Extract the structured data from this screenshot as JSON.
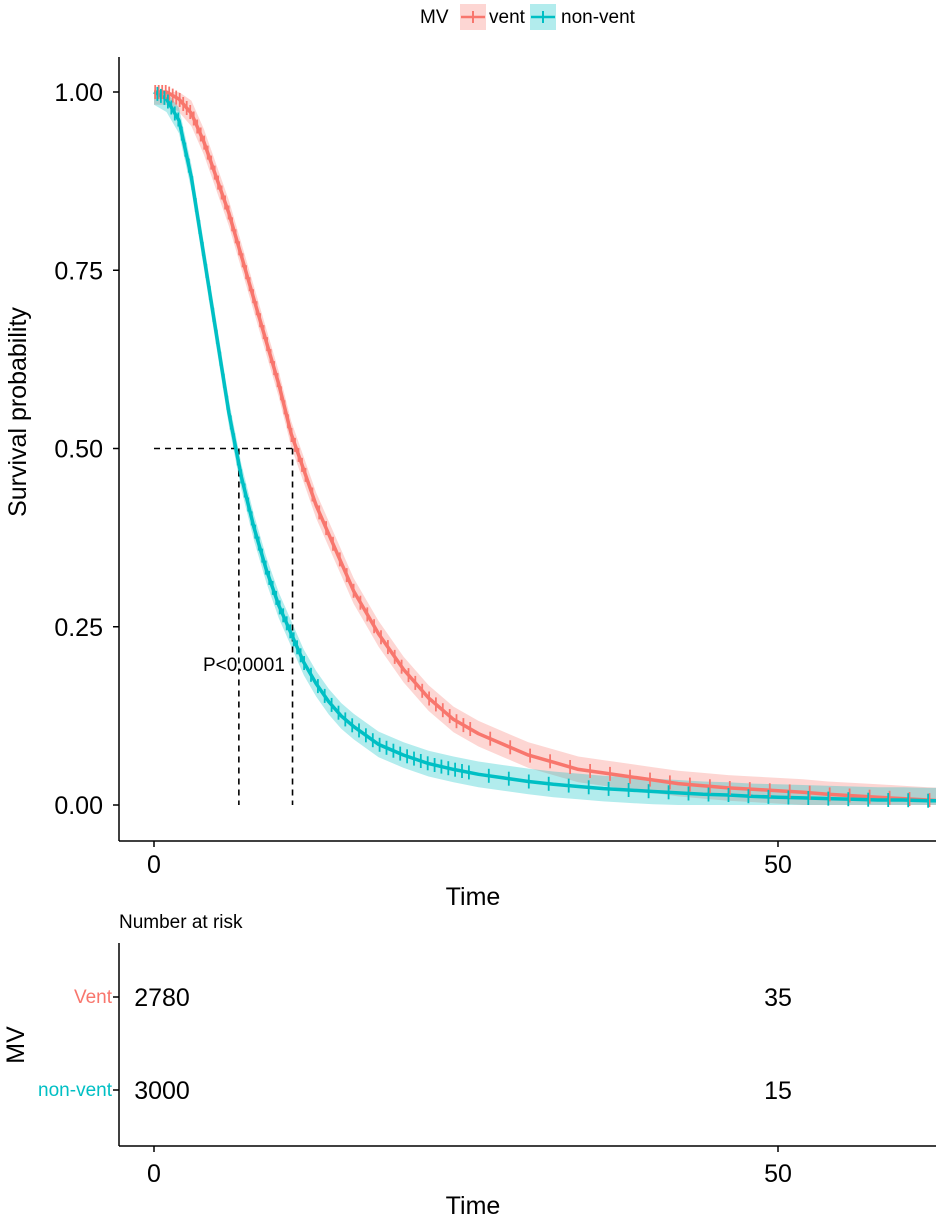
{
  "legend": {
    "title": "MV",
    "items": [
      {
        "label": "vent",
        "color": "#F8766D"
      },
      {
        "label": "non-vent",
        "color": "#00BFC4"
      }
    ],
    "placement": "top"
  },
  "chart_data": [
    {
      "type": "line",
      "subtype": "kaplan-meier survival curve with confidence bands and censor marks",
      "xlabel": "Time",
      "ylabel": "Survival probability",
      "xlim": [
        -5.5,
        63
      ],
      "ylim": [
        -0.05,
        1.05
      ],
      "xticks": [
        0,
        50
      ],
      "yticks": [
        0.0,
        0.25,
        0.5,
        0.75,
        1.0
      ],
      "ytick_labels": [
        "0.00",
        "0.25",
        "0.50",
        "0.75",
        "1.00"
      ],
      "grid": false,
      "annotation": "P<0.0001",
      "median_survival": [
        {
          "series": "non-vent",
          "time": 6.8,
          "probability": 0.5
        },
        {
          "series": "vent",
          "time": 11.1,
          "probability": 0.5
        }
      ],
      "series": [
        {
          "name": "vent",
          "color": "#F8766D",
          "x": [
            0,
            1,
            2,
            3,
            4,
            5,
            6,
            7,
            8,
            9,
            10,
            11,
            12,
            13,
            14,
            15,
            16,
            17,
            18,
            20,
            22,
            24,
            26,
            28,
            30,
            32,
            34,
            36,
            38,
            40,
            42,
            44,
            46,
            48,
            50,
            52,
            54,
            56,
            58,
            60,
            62,
            63
          ],
          "y": [
            1.0,
            1.0,
            0.99,
            0.97,
            0.93,
            0.88,
            0.83,
            0.77,
            0.71,
            0.65,
            0.59,
            0.52,
            0.47,
            0.42,
            0.38,
            0.34,
            0.3,
            0.27,
            0.24,
            0.19,
            0.15,
            0.12,
            0.1,
            0.085,
            0.07,
            0.06,
            0.05,
            0.045,
            0.04,
            0.035,
            0.03,
            0.027,
            0.024,
            0.022,
            0.02,
            0.018,
            0.015,
            0.013,
            0.011,
            0.009,
            0.007,
            0.006
          ]
        },
        {
          "name": "non-vent",
          "color": "#00BFC4",
          "x": [
            0,
            1,
            2,
            3,
            4,
            5,
            6,
            7,
            8,
            9,
            10,
            11,
            12,
            13,
            14,
            15,
            16,
            18,
            20,
            22,
            24,
            26,
            28,
            30,
            32,
            34,
            36,
            38,
            40,
            42,
            44,
            46,
            48,
            50,
            52,
            54,
            56,
            58,
            60,
            62,
            63
          ],
          "y": [
            1.0,
            0.99,
            0.96,
            0.88,
            0.77,
            0.66,
            0.55,
            0.46,
            0.39,
            0.33,
            0.28,
            0.24,
            0.2,
            0.17,
            0.145,
            0.125,
            0.11,
            0.085,
            0.07,
            0.058,
            0.05,
            0.043,
            0.038,
            0.033,
            0.029,
            0.026,
            0.023,
            0.021,
            0.019,
            0.017,
            0.015,
            0.014,
            0.012,
            0.011,
            0.01,
            0.009,
            0.008,
            0.007,
            0.007,
            0.006,
            0.006
          ]
        }
      ]
    },
    {
      "type": "table",
      "title": "Number at risk",
      "xlabel": "Time",
      "ylabel": "MV",
      "xticks": [
        0,
        50
      ],
      "rows": [
        {
          "label": "Vent",
          "color": "#F8766D",
          "values": [
            2780,
            35
          ]
        },
        {
          "label": "non-vent",
          "color": "#00BFC4",
          "values": [
            3000,
            15
          ]
        }
      ]
    }
  ]
}
